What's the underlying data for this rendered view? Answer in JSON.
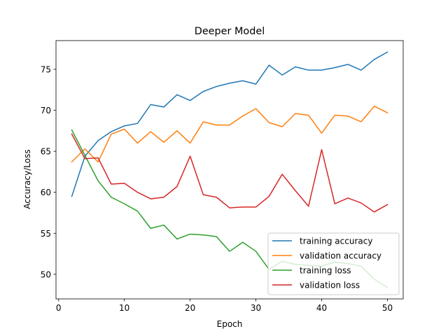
{
  "chart_data": {
    "type": "line",
    "title": "Deeper Model",
    "xlabel": "Epoch",
    "ylabel": "Accuracy/Loss",
    "xlim": [
      -0.4,
      52.4
    ],
    "ylim": [
      47.0,
      78.5
    ],
    "xticks": [
      0,
      10,
      20,
      30,
      40,
      50
    ],
    "yticks": [
      50,
      55,
      60,
      65,
      70,
      75
    ],
    "grid": false,
    "legend_position": "lower-right",
    "x": [
      2,
      4,
      6,
      8,
      10,
      12,
      14,
      16,
      18,
      20,
      22,
      24,
      26,
      28,
      30,
      32,
      34,
      36,
      38,
      40,
      42,
      44,
      46,
      48,
      50
    ],
    "series": [
      {
        "name": "training accuracy",
        "color": "#1f77b4",
        "values": [
          59.5,
          64.4,
          66.3,
          67.4,
          68.1,
          68.4,
          70.7,
          70.4,
          71.9,
          71.2,
          72.3,
          72.9,
          73.3,
          73.6,
          73.2,
          75.5,
          74.3,
          75.3,
          74.9,
          74.9,
          75.2,
          75.6,
          74.9,
          76.2,
          77.1
        ]
      },
      {
        "name": "validation accuracy",
        "color": "#ff7f0e",
        "values": [
          63.7,
          65.3,
          63.7,
          67.1,
          67.7,
          66.0,
          67.4,
          66.1,
          67.5,
          66.0,
          68.6,
          68.2,
          68.2,
          69.3,
          70.2,
          68.5,
          68.0,
          69.6,
          69.4,
          67.2,
          69.4,
          69.3,
          68.6,
          70.5,
          69.7
        ]
      },
      {
        "name": "training loss",
        "color": "#2ca02c",
        "values": [
          67.6,
          64.5,
          61.4,
          59.4,
          58.6,
          57.7,
          55.6,
          56.0,
          54.3,
          54.9,
          54.8,
          54.6,
          52.8,
          53.9,
          52.8,
          50.6,
          51.6,
          51.2,
          51.1,
          51.0,
          51.5,
          51.3,
          51.0,
          49.4,
          48.4
        ]
      },
      {
        "name": "validation loss",
        "color": "#d62728",
        "values": [
          67.1,
          64.1,
          64.2,
          61.0,
          61.1,
          60.0,
          59.2,
          59.4,
          60.7,
          64.4,
          59.7,
          59.4,
          58.1,
          58.2,
          58.2,
          59.5,
          62.2,
          60.2,
          58.3,
          65.2,
          58.6,
          59.3,
          58.7,
          57.6,
          58.5
        ]
      }
    ]
  }
}
